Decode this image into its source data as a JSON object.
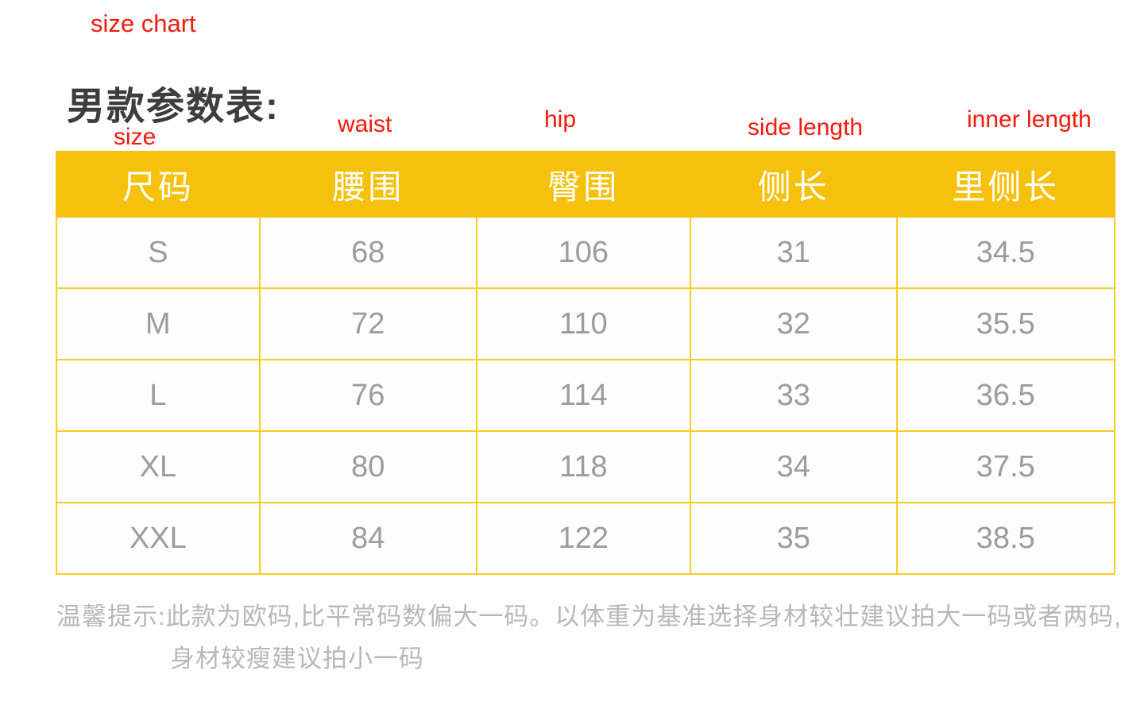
{
  "page": {
    "overlay_title": "size chart",
    "section_title": "男款参数表:"
  },
  "annotations": [
    {
      "label": "size"
    },
    {
      "label": "waist"
    },
    {
      "label": "hip"
    },
    {
      "label": "side length"
    },
    {
      "label": "inner length"
    }
  ],
  "size_table": {
    "headers": [
      "尺码",
      "腰围",
      "臀围",
      "侧长",
      "里侧长"
    ],
    "rows": [
      [
        "S",
        "68",
        "106",
        "31",
        "34.5"
      ],
      [
        "M",
        "72",
        "110",
        "32",
        "35.5"
      ],
      [
        "L",
        "76",
        "114",
        "33",
        "36.5"
      ],
      [
        "XL",
        "80",
        "118",
        "34",
        "37.5"
      ],
      [
        "XXL",
        "84",
        "122",
        "35",
        "38.5"
      ]
    ]
  },
  "note": {
    "line1": "温馨提示:此款为欧码,比平常码数偏大一码。以体重为基准选择身材较壮建议拍大一码或者两码,",
    "line2": "身材较瘦建议拍小一码"
  },
  "colors": {
    "accent_yellow": "#f6c10d",
    "grid_yellow": "#f9ce1e",
    "annotation_red": "#f41a0c",
    "cell_text_gray": "#9c9c9c",
    "note_gray": "#b8b8b8",
    "title_dark": "#3d3d3d"
  }
}
